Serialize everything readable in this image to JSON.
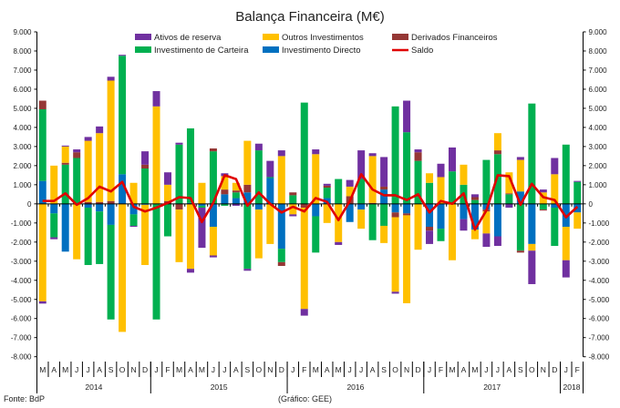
{
  "chart_data": {
    "type": "bar",
    "stacked": true,
    "title": "Balança Financeira (M€)",
    "source": "Fonte: BdP",
    "credit": "(Gráfico: GEE)",
    "ylim": [
      -8000,
      9000
    ],
    "y_ticks": [
      "9.000",
      "8.000",
      "7.000",
      "6.000",
      "5.000",
      "4.000",
      "3.000",
      "2.000",
      "1.000",
      "0",
      "-1.000",
      "-2.000",
      "-3.000",
      "-4.000",
      "-5.000",
      "-6.000",
      "-7.000",
      "-8.000"
    ],
    "y_tick_values": [
      9000,
      8000,
      7000,
      6000,
      5000,
      4000,
      3000,
      2000,
      1000,
      0,
      -1000,
      -2000,
      -3000,
      -4000,
      -5000,
      -6000,
      -7000,
      -8000
    ],
    "years": [
      {
        "label": "2014",
        "count": 10
      },
      {
        "label": "2015",
        "count": 12
      },
      {
        "label": "2016",
        "count": 12
      },
      {
        "label": "2017",
        "count": 12
      },
      {
        "label": "2018",
        "count": 2
      }
    ],
    "categories": [
      "M",
      "A",
      "M",
      "J",
      "J",
      "A",
      "S",
      "O",
      "N",
      "D",
      "J",
      "F",
      "M",
      "A",
      "M",
      "J",
      "J",
      "A",
      "S",
      "O",
      "N",
      "D",
      "J",
      "F",
      "M",
      "A",
      "M",
      "J",
      "J",
      "A",
      "S",
      "O",
      "N",
      "D",
      "J",
      "F",
      "M",
      "A",
      "M",
      "J",
      "J",
      "A",
      "S",
      "O",
      "N",
      "D",
      "J",
      "F"
    ],
    "series": [
      {
        "name": "Investimento Directo",
        "color": "#0070C0",
        "values": [
          1200,
          -500,
          -2500,
          0,
          -200,
          -400,
          -1100,
          1550,
          -550,
          -50,
          0,
          0,
          0,
          50,
          -100,
          -1200,
          500,
          300,
          600,
          -300,
          1350,
          -2350,
          0,
          0,
          -650,
          300,
          0,
          -950,
          -300,
          0,
          750,
          -450,
          -500,
          0,
          -1200,
          -1300,
          0,
          -800,
          -1350,
          -300,
          -1700,
          0,
          650,
          -2100,
          0,
          -200,
          -1200,
          -450
        ]
      },
      {
        "name": "Investimento de Carteira",
        "color": "#00B050",
        "values": [
          3750,
          -1250,
          2050,
          2400,
          -3000,
          -2750,
          -4950,
          6200,
          -600,
          1850,
          -6050,
          -1700,
          3100,
          3900,
          -100,
          2750,
          -100,
          300,
          -3400,
          2800,
          50,
          -700,
          450,
          5300,
          -1900,
          550,
          1300,
          0,
          1300,
          -1900,
          -1150,
          5100,
          3750,
          2250,
          1100,
          -650,
          1700,
          1000,
          200,
          2300,
          2600,
          500,
          -2450,
          5250,
          -300,
          -2000,
          3100,
          1150
        ]
      },
      {
        "name": "Derivados Financeiros",
        "color": "#953735",
        "values": [
          450,
          0,
          100,
          300,
          100,
          100,
          150,
          0,
          0,
          200,
          0,
          150,
          -300,
          0,
          0,
          150,
          250,
          100,
          400,
          0,
          0,
          -200,
          150,
          -200,
          0,
          100,
          0,
          400,
          0,
          50,
          150,
          -250,
          -100,
          450,
          -200,
          0,
          0,
          0,
          150,
          -100,
          200,
          50,
          -100,
          0,
          -50,
          0,
          0,
          0
        ]
      },
      {
        "name": "Outros Investimentos",
        "color": "#FFC000",
        "values": [
          -5100,
          2000,
          850,
          -2900,
          3200,
          3600,
          6300,
          -6700,
          1100,
          -3150,
          5100,
          850,
          -2750,
          -3400,
          1100,
          -1500,
          700,
          400,
          2300,
          -2550,
          -2100,
          2500,
          -550,
          -5300,
          2600,
          -1000,
          -2000,
          500,
          -1000,
          2450,
          -900,
          -3900,
          -4600,
          -2400,
          500,
          1400,
          -2950,
          1050,
          -500,
          -1150,
          900,
          1100,
          1650,
          -350,
          600,
          1550,
          -1750,
          -850
        ]
      },
      {
        "name": "Ativos de reserva",
        "color": "#7030A0",
        "values": [
          -120,
          -100,
          50,
          150,
          200,
          350,
          200,
          50,
          -50,
          700,
          800,
          650,
          100,
          -200,
          -2100,
          -100,
          150,
          -100,
          -100,
          350,
          850,
          300,
          -100,
          -350,
          250,
          100,
          -150,
          350,
          1500,
          150,
          1550,
          -100,
          1650,
          150,
          -700,
          700,
          1250,
          -600,
          150,
          -700,
          -500,
          -200,
          150,
          -1750,
          150,
          850,
          -900,
          50
        ]
      }
    ],
    "line": {
      "name": "Saldo",
      "color": "#E00000",
      "values": [
        150,
        150,
        550,
        -50,
        300,
        900,
        650,
        1150,
        -150,
        -400,
        -200,
        50,
        350,
        300,
        -950,
        50,
        1500,
        1300,
        -100,
        600,
        0,
        -450,
        -150,
        -400,
        300,
        100,
        -850,
        150,
        1550,
        750,
        450,
        450,
        200,
        500,
        -450,
        150,
        0,
        550,
        -1350,
        -350,
        1500,
        1450,
        -50,
        1050,
        350,
        200,
        -700,
        -150
      ]
    },
    "legend": [
      {
        "label": "Ativos de reserva",
        "color": "#7030A0",
        "kind": "box"
      },
      {
        "label": "Outros Investimentos",
        "color": "#FFC000",
        "kind": "box"
      },
      {
        "label": "Derivados Financeiros",
        "color": "#953735",
        "kind": "box"
      },
      {
        "label": "Investimento de Carteira",
        "color": "#00B050",
        "kind": "box"
      },
      {
        "label": "Investimento Directo",
        "color": "#0070C0",
        "kind": "box"
      },
      {
        "label": "Saldo",
        "color": "#E00000",
        "kind": "line"
      }
    ],
    "legend_placement": "top-center",
    "grid": false
  }
}
